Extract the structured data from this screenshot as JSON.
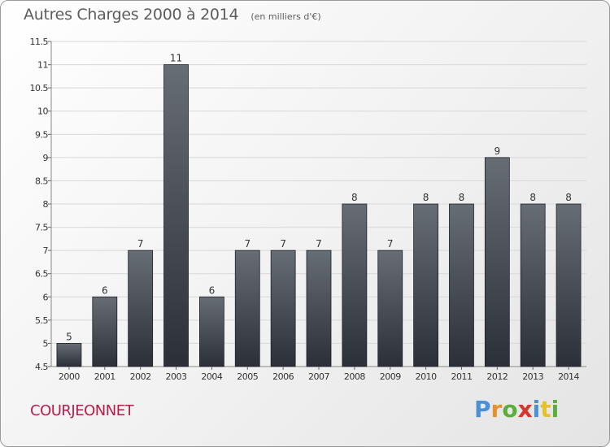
{
  "header": {
    "title": "Autres Charges 2000 à 2014",
    "subtitle": "(en milliers d'€)"
  },
  "footer": {
    "commune": "COURJEONNET",
    "logo_text": "Proxiti",
    "logo_colors": [
      "#4a90d9",
      "#e8912a",
      "#5cae3a",
      "#d9342b",
      "#4a90d9",
      "#e8c02a",
      "#5cae3a"
    ]
  },
  "colors": {
    "bar_top": "#676d75",
    "bar_bottom": "#2b3038",
    "grid": "#d8d8d8",
    "axis_text": "#333333",
    "commune": "#b31e4c"
  },
  "chart_data": {
    "type": "bar",
    "title": "Autres Charges 2000 à 2014",
    "subtitle": "(en milliers d'€)",
    "categories": [
      "2000",
      "2001",
      "2002",
      "2003",
      "2004",
      "2005",
      "2006",
      "2007",
      "2008",
      "2009",
      "2010",
      "2011",
      "2012",
      "2013",
      "2014"
    ],
    "values": [
      5,
      6,
      7,
      11,
      6,
      7,
      7,
      7,
      8,
      7,
      8,
      8,
      9,
      8,
      8
    ],
    "value_labels": [
      "5",
      "6",
      "7",
      "11",
      "6",
      "7",
      "7",
      "7",
      "8",
      "7",
      "8",
      "8",
      "9",
      "8",
      "8"
    ],
    "ylim": [
      4.5,
      11.5
    ],
    "yticks": [
      4.5,
      5,
      5.5,
      6,
      6.5,
      7,
      7.5,
      8,
      8.5,
      9,
      9.5,
      10,
      10.5,
      11,
      11.5
    ],
    "ytick_labels": [
      "4.5",
      "5",
      "5.5",
      "6",
      "6.5",
      "7",
      "7.5",
      "8",
      "8.5",
      "9",
      "9.5",
      "10",
      "10.5",
      "11",
      "11.5"
    ],
    "xlabel": "",
    "ylabel": "",
    "grid": true,
    "legend": "none"
  }
}
